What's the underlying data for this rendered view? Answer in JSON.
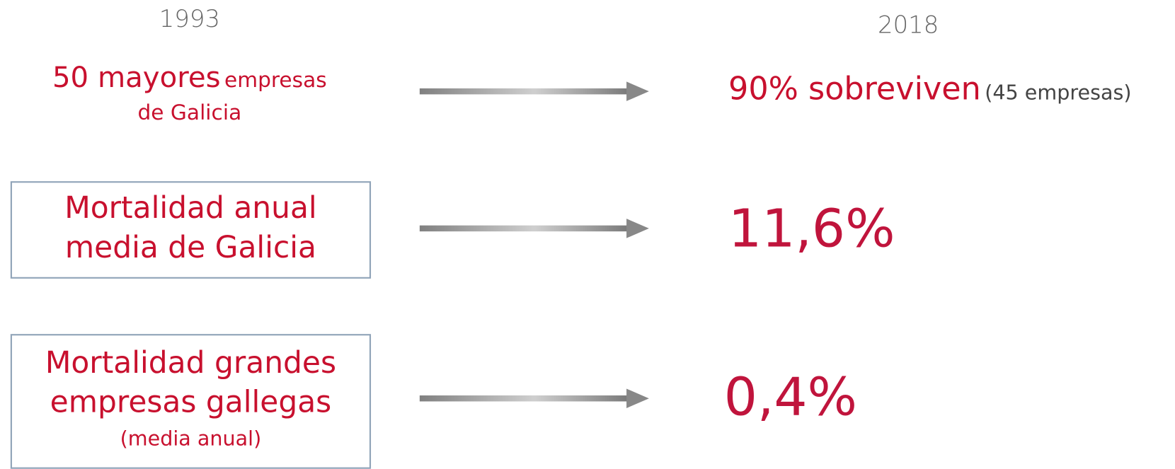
{
  "headers": {
    "left": "1993",
    "right": "2018"
  },
  "rows": [
    {
      "left": [
        "50 mayores",
        "empresas",
        "de Galicia"
      ],
      "right": [
        "90% sobreviven",
        "(45 empresas)"
      ]
    },
    {
      "left": [
        "Mortalidad anual",
        "media de Galicia"
      ],
      "right": [
        "11,6%"
      ]
    },
    {
      "left": [
        "Mortalidad grandes",
        "empresas gallegas",
        "(media anual)"
      ],
      "right": [
        "0,4%"
      ]
    }
  ]
}
